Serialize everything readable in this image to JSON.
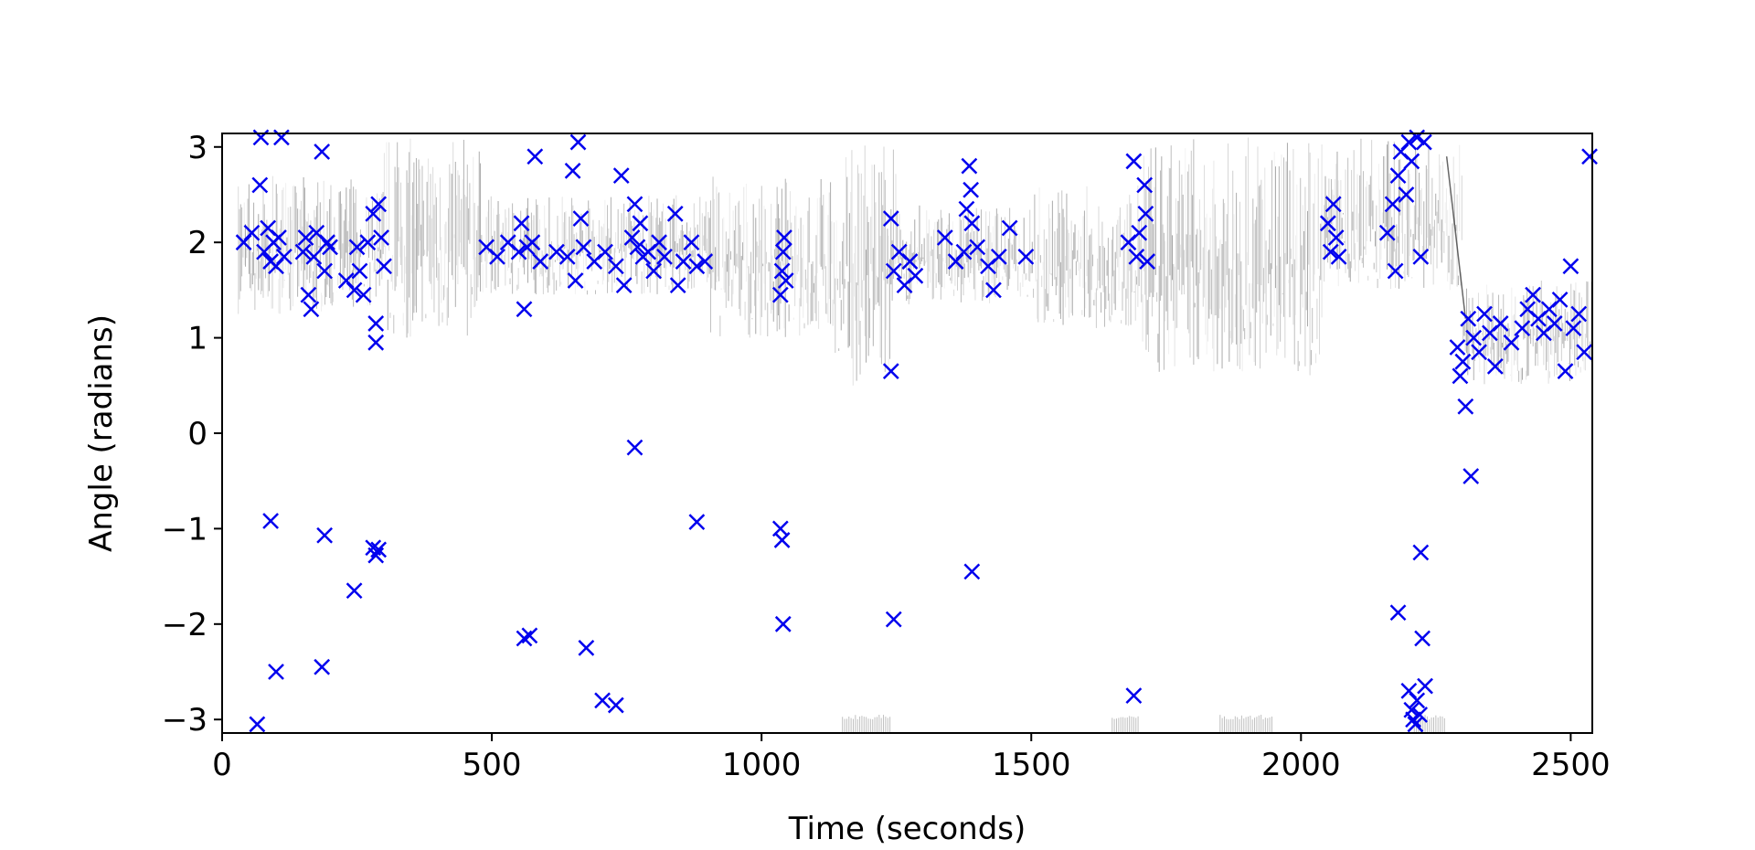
{
  "chart_data": {
    "type": "scatter",
    "title": "",
    "xlabel": "Time (seconds)",
    "ylabel": "Angle (radians)",
    "xlim": [
      0,
      2540
    ],
    "ylim": [
      -3.14159,
      3.14159
    ],
    "xticks": [
      0,
      500,
      1000,
      1500,
      2000,
      2500
    ],
    "yticks": [
      -3,
      -2,
      -1,
      0,
      1,
      2,
      3
    ],
    "xtick_labels": [
      "0",
      "500",
      "1000",
      "1500",
      "2000",
      "2500"
    ],
    "ytick_labels": [
      "−3",
      "−2",
      "−1",
      "0",
      "1",
      "2",
      "3"
    ],
    "grid": false,
    "legend": "none",
    "colors": {
      "markers": "#0000ee",
      "background_trace": "#000000"
    },
    "series": [
      {
        "marker": "x",
        "points": [
          [
            40,
            2.0
          ],
          [
            55,
            2.1
          ],
          [
            70,
            2.6
          ],
          [
            72,
            3.1
          ],
          [
            78,
            1.9
          ],
          [
            85,
            2.15
          ],
          [
            90,
            1.8
          ],
          [
            95,
            2.0
          ],
          [
            100,
            1.75
          ],
          [
            105,
            2.05
          ],
          [
            110,
            3.1
          ],
          [
            115,
            1.85
          ],
          [
            150,
            1.9
          ],
          [
            155,
            2.05
          ],
          [
            160,
            1.45
          ],
          [
            165,
            1.3
          ],
          [
            170,
            1.85
          ],
          [
            175,
            2.1
          ],
          [
            185,
            2.95
          ],
          [
            190,
            1.7
          ],
          [
            195,
            2.0
          ],
          [
            200,
            1.95
          ],
          [
            230,
            1.6
          ],
          [
            245,
            1.5
          ],
          [
            250,
            1.95
          ],
          [
            255,
            1.7
          ],
          [
            262,
            1.45
          ],
          [
            270,
            2.0
          ],
          [
            280,
            2.3
          ],
          [
            285,
            1.15
          ],
          [
            285,
            0.95
          ],
          [
            290,
            2.4
          ],
          [
            295,
            2.05
          ],
          [
            300,
            1.75
          ],
          [
            490,
            1.95
          ],
          [
            510,
            1.85
          ],
          [
            530,
            2.0
          ],
          [
            550,
            1.9
          ],
          [
            555,
            2.2
          ],
          [
            560,
            1.3
          ],
          [
            565,
            1.95
          ],
          [
            575,
            2.0
          ],
          [
            580,
            2.9
          ],
          [
            590,
            1.8
          ],
          [
            620,
            1.9
          ],
          [
            640,
            1.85
          ],
          [
            650,
            2.75
          ],
          [
            655,
            1.6
          ],
          [
            660,
            3.05
          ],
          [
            665,
            2.25
          ],
          [
            670,
            1.95
          ],
          [
            690,
            1.8
          ],
          [
            710,
            1.9
          ],
          [
            730,
            1.75
          ],
          [
            740,
            2.7
          ],
          [
            745,
            1.55
          ],
          [
            760,
            2.05
          ],
          [
            765,
            2.4
          ],
          [
            770,
            1.95
          ],
          [
            775,
            2.2
          ],
          [
            780,
            1.85
          ],
          [
            790,
            1.9
          ],
          [
            800,
            1.7
          ],
          [
            810,
            2.0
          ],
          [
            820,
            1.85
          ],
          [
            840,
            2.3
          ],
          [
            845,
            1.55
          ],
          [
            855,
            1.8
          ],
          [
            870,
            2.0
          ],
          [
            880,
            1.75
          ],
          [
            895,
            1.8
          ],
          [
            1035,
            1.45
          ],
          [
            1038,
            1.7
          ],
          [
            1040,
            1.9
          ],
          [
            1042,
            2.05
          ],
          [
            1045,
            1.6
          ],
          [
            1240,
            2.25
          ],
          [
            1240,
            0.65
          ],
          [
            1245,
            1.7
          ],
          [
            1255,
            1.9
          ],
          [
            1265,
            1.55
          ],
          [
            1275,
            1.8
          ],
          [
            1285,
            1.65
          ],
          [
            1340,
            2.05
          ],
          [
            1360,
            1.8
          ],
          [
            1375,
            1.9
          ],
          [
            1380,
            2.35
          ],
          [
            1385,
            2.8
          ],
          [
            1388,
            2.55
          ],
          [
            1390,
            2.2
          ],
          [
            1400,
            1.95
          ],
          [
            1420,
            1.75
          ],
          [
            1430,
            1.5
          ],
          [
            1440,
            1.85
          ],
          [
            1460,
            2.15
          ],
          [
            1490,
            1.85
          ],
          [
            1680,
            2.0
          ],
          [
            1690,
            2.85
          ],
          [
            1695,
            1.85
          ],
          [
            1700,
            2.1
          ],
          [
            1710,
            2.6
          ],
          [
            1712,
            2.3
          ],
          [
            1715,
            1.8
          ],
          [
            2050,
            2.2
          ],
          [
            2055,
            1.9
          ],
          [
            2060,
            2.4
          ],
          [
            2065,
            2.05
          ],
          [
            2070,
            1.85
          ],
          [
            2160,
            2.1
          ],
          [
            2170,
            2.4
          ],
          [
            2175,
            1.7
          ],
          [
            2180,
            2.7
          ],
          [
            2185,
            2.95
          ],
          [
            2195,
            2.5
          ],
          [
            2200,
            3.05
          ],
          [
            2205,
            2.85
          ],
          [
            2215,
            3.1
          ],
          [
            2222,
            1.85
          ],
          [
            2228,
            3.05
          ],
          [
            2290,
            0.9
          ],
          [
            2295,
            0.6
          ],
          [
            2300,
            0.75
          ],
          [
            2305,
            0.28
          ],
          [
            2310,
            1.2
          ],
          [
            2320,
            1.0
          ],
          [
            2330,
            0.85
          ],
          [
            2340,
            1.25
          ],
          [
            2350,
            1.05
          ],
          [
            2360,
            0.7
          ],
          [
            2370,
            1.15
          ],
          [
            2390,
            0.95
          ],
          [
            2410,
            1.1
          ],
          [
            2420,
            1.3
          ],
          [
            2430,
            1.45
          ],
          [
            2440,
            1.2
          ],
          [
            2450,
            1.05
          ],
          [
            2460,
            1.3
          ],
          [
            2470,
            1.15
          ],
          [
            2480,
            1.4
          ],
          [
            2490,
            0.65
          ],
          [
            2500,
            1.75
          ],
          [
            2505,
            1.1
          ],
          [
            2515,
            1.25
          ],
          [
            2525,
            0.85
          ],
          [
            2535,
            2.9
          ],
          [
            65,
            -3.05
          ],
          [
            90,
            -0.92
          ],
          [
            100,
            -2.5
          ],
          [
            185,
            -2.45
          ],
          [
            190,
            -1.07
          ],
          [
            245,
            -1.65
          ],
          [
            280,
            -1.2
          ],
          [
            285,
            -1.28
          ],
          [
            290,
            -1.22
          ],
          [
            560,
            -2.15
          ],
          [
            570,
            -2.12
          ],
          [
            675,
            -2.25
          ],
          [
            705,
            -2.8
          ],
          [
            730,
            -2.85
          ],
          [
            765,
            -0.15
          ],
          [
            880,
            -0.93
          ],
          [
            1035,
            -1.0
          ],
          [
            1038,
            -1.12
          ],
          [
            1040,
            -2.0
          ],
          [
            1245,
            -1.95
          ],
          [
            1390,
            -1.45
          ],
          [
            1690,
            -2.75
          ],
          [
            2180,
            -1.88
          ],
          [
            2200,
            -2.7
          ],
          [
            2205,
            -2.9
          ],
          [
            2208,
            -3.0
          ],
          [
            2212,
            -3.05
          ],
          [
            2215,
            -2.8
          ],
          [
            2220,
            -2.95
          ],
          [
            2222,
            -1.25
          ],
          [
            2225,
            -2.15
          ],
          [
            2230,
            -2.65
          ],
          [
            2315,
            -0.45
          ]
        ]
      }
    ]
  }
}
